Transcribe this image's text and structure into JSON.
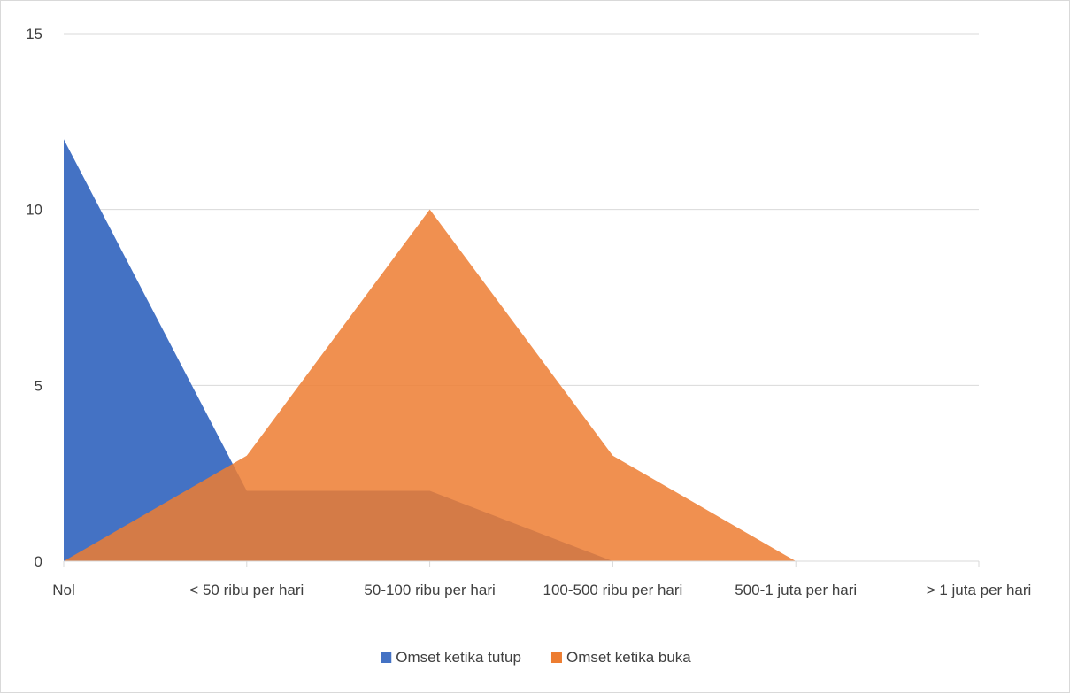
{
  "chart_data": {
    "type": "area",
    "title": "",
    "xlabel": "",
    "ylabel": "",
    "categories": [
      "Nol",
      "< 50 ribu per hari",
      "50-100 ribu per hari",
      "100-500 ribu per hari",
      "500-1 juta per hari",
      "> 1 juta per hari"
    ],
    "series": [
      {
        "name": "Omset ketika tutup",
        "values": [
          12,
          2,
          2,
          0,
          0,
          0
        ],
        "color": "#4472c4"
      },
      {
        "name": "Omset ketika buka",
        "values": [
          0,
          3,
          10,
          3,
          0,
          0
        ],
        "color": "#ed7d31"
      }
    ],
    "ylim": [
      0,
      15
    ],
    "yticks": [
      0,
      5,
      10,
      15
    ],
    "grid": true,
    "legend_position": "bottom"
  }
}
